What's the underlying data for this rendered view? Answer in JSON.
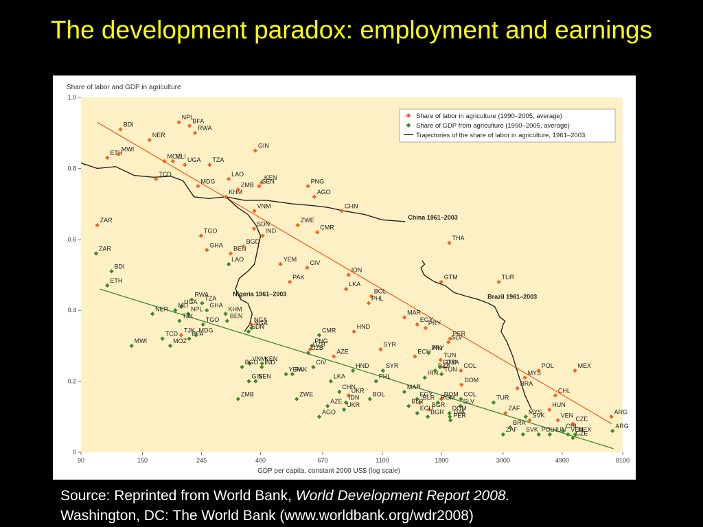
{
  "title": "The development paradox: employment and earnings",
  "source": {
    "prefix": "Source: Reprinted from World Bank, ",
    "italic": "World Development Report 2008.",
    "line2": "Washington, DC: The World Bank (www.worldbank.org/wdr2008)"
  },
  "colors": {
    "labor": "#f26522",
    "gdp": "#3f8a2e",
    "trajectory": "#222222",
    "plot_bg": "#fdf0c4",
    "title": "#ffff00"
  },
  "chart_data": {
    "type": "scatter",
    "title": "",
    "ylabel": "Share of labor and GDP in agriculture",
    "xlabel": "GDP per capita, constant 2000 US$ (log scale)",
    "x_scale": "log",
    "xlim": [
      90,
      8100
    ],
    "ylim": [
      0,
      1
    ],
    "xticks": [
      90,
      150,
      245,
      400,
      670,
      1100,
      1800,
      3000,
      4900,
      8100
    ],
    "yticks": [
      0,
      0.2,
      0.4,
      0.6,
      0.8,
      1.0
    ],
    "ytick_labels": [
      "0",
      "0.2",
      "0.4",
      "0.6",
      "0.8",
      "1.0"
    ],
    "legend_position": "top-right",
    "legend": [
      "Share of labor in agriculture (1990–2005, average)",
      "Share of GDP from agriculture (1990–2005, average)",
      "Trajectories of the share of labor in agriculture, 1961–2003"
    ],
    "series": [
      {
        "name": "Share of labor in agriculture (1990–2005, average)",
        "marker": "diamond",
        "points": [
          {
            "label": "BDI",
            "x": 125,
            "y": 0.91
          },
          {
            "label": "NPL",
            "x": 203,
            "y": 0.93
          },
          {
            "label": "BFA",
            "x": 222,
            "y": 0.92
          },
          {
            "label": "RWA",
            "x": 232,
            "y": 0.9
          },
          {
            "label": "NER",
            "x": 159,
            "y": 0.88
          },
          {
            "label": "ETH",
            "x": 112,
            "y": 0.83
          },
          {
            "label": "MWI",
            "x": 123,
            "y": 0.84
          },
          {
            "label": "MOZ",
            "x": 180,
            "y": 0.82
          },
          {
            "label": "MLI",
            "x": 193,
            "y": 0.82
          },
          {
            "label": "UGA",
            "x": 213,
            "y": 0.81
          },
          {
            "label": "TZA",
            "x": 262,
            "y": 0.81
          },
          {
            "label": "GIN",
            "x": 383,
            "y": 0.85
          },
          {
            "label": "TCD",
            "x": 168,
            "y": 0.77
          },
          {
            "label": "MDG",
            "x": 238,
            "y": 0.75
          },
          {
            "label": "LAO",
            "x": 307,
            "y": 0.77
          },
          {
            "label": "KHM",
            "x": 300,
            "y": 0.72
          },
          {
            "label": "ZMB",
            "x": 332,
            "y": 0.74
          },
          {
            "label": "KEN",
            "x": 403,
            "y": 0.76
          },
          {
            "label": "SEN",
            "x": 395,
            "y": 0.75
          },
          {
            "label": "PNG",
            "x": 593,
            "y": 0.75
          },
          {
            "label": "AGO",
            "x": 625,
            "y": 0.72
          },
          {
            "label": "VNM",
            "x": 380,
            "y": 0.68
          },
          {
            "label": "CHN",
            "x": 786,
            "y": 0.68
          },
          {
            "label": "ZAR",
            "x": 103,
            "y": 0.64
          },
          {
            "label": "SDN",
            "x": 379,
            "y": 0.63
          },
          {
            "label": "IND",
            "x": 407,
            "y": 0.61
          },
          {
            "label": "ZWE",
            "x": 545,
            "y": 0.64
          },
          {
            "label": "CMR",
            "x": 641,
            "y": 0.62
          },
          {
            "label": "TGO",
            "x": 244,
            "y": 0.61
          },
          {
            "label": "BEN",
            "x": 312,
            "y": 0.56
          },
          {
            "label": "BGD",
            "x": 347,
            "y": 0.58
          },
          {
            "label": "GHA",
            "x": 256,
            "y": 0.57
          },
          {
            "label": "THA",
            "x": 1919,
            "y": 0.59
          },
          {
            "label": "YEM",
            "x": 472,
            "y": 0.53
          },
          {
            "label": "CIV",
            "x": 589,
            "y": 0.52
          },
          {
            "label": "IDN",
            "x": 831,
            "y": 0.5
          },
          {
            "label": "PAK",
            "x": 510,
            "y": 0.48
          },
          {
            "label": "TUR",
            "x": 2896,
            "y": 0.48
          },
          {
            "label": "GTM",
            "x": 1795,
            "y": 0.48
          },
          {
            "label": "BOL",
            "x": 1003,
            "y": 0.44
          },
          {
            "label": "LKA",
            "x": 814,
            "y": 0.46
          },
          {
            "label": "PHL",
            "x": 982,
            "y": 0.42
          },
          {
            "label": "MAR",
            "x": 1322,
            "y": 0.38
          },
          {
            "label": "EGY",
            "x": 1470,
            "y": 0.36
          },
          {
            "label": "PRY",
            "x": 1575,
            "y": 0.35
          },
          {
            "label": "HND",
            "x": 869,
            "y": 0.34
          },
          {
            "label": "PER",
            "x": 1932,
            "y": 0.32
          },
          {
            "label": "SLV",
            "x": 1904,
            "y": 0.31
          },
          {
            "label": "SYR",
            "x": 1085,
            "y": 0.29
          },
          {
            "label": "UZB",
            "x": 604,
            "y": 0.29
          },
          {
            "label": "ECU",
            "x": 1442,
            "y": 0.27
          },
          {
            "label": "IRN",
            "x": 1614,
            "y": 0.28
          },
          {
            "label": "TUN",
            "x": 1786,
            "y": 0.26
          },
          {
            "label": "AZE",
            "x": 735,
            "y": 0.27
          },
          {
            "label": "DZA",
            "x": 1835,
            "y": 0.24
          },
          {
            "label": "COL",
            "x": 2113,
            "y": 0.23
          },
          {
            "label": "MYS",
            "x": 3595,
            "y": 0.21
          },
          {
            "label": "POL",
            "x": 4034,
            "y": 0.23
          },
          {
            "label": "MEX",
            "x": 5452,
            "y": 0.23
          },
          {
            "label": "DOM",
            "x": 2124,
            "y": 0.19
          },
          {
            "label": "BRA",
            "x": 3379,
            "y": 0.18
          },
          {
            "label": "CHL",
            "x": 4629,
            "y": 0.16
          },
          {
            "label": "HUN",
            "x": 4407,
            "y": 0.12
          },
          {
            "label": "VEN",
            "x": 4729,
            "y": 0.09
          },
          {
            "label": "CZE",
            "x": 5355,
            "y": 0.08
          },
          {
            "label": "ARG",
            "x": 7376,
            "y": 0.1
          },
          {
            "label": "ZAF",
            "x": 3060,
            "y": 0.11
          },
          {
            "label": "SVK",
            "x": 3740,
            "y": 0.09
          },
          {
            "label": "BLR",
            "x": 1504,
            "y": 0.14
          },
          {
            "label": "ROM",
            "x": 1795,
            "y": 0.15
          },
          {
            "label": "UKR",
            "x": 831,
            "y": 0.16
          },
          {
            "label": "BGR",
            "x": 1621,
            "y": 0.12
          },
          {
            "label": "NGA",
            "x": 370,
            "y": 0.36
          },
          {
            "label": "TJK",
            "x": 207,
            "y": 0.33
          }
        ]
      },
      {
        "name": "Share of GDP from agriculture (1990–2005, average)",
        "marker": "diamond",
        "points": [
          {
            "label": "ZAR",
            "x": 102,
            "y": 0.56
          },
          {
            "label": "BDI",
            "x": 116,
            "y": 0.51
          },
          {
            "label": "ETH",
            "x": 112,
            "y": 0.47
          },
          {
            "label": "LAO",
            "x": 307,
            "y": 0.53
          },
          {
            "label": "UGA",
            "x": 207,
            "y": 0.41
          },
          {
            "label": "RWA",
            "x": 226,
            "y": 0.43
          },
          {
            "label": "TZA",
            "x": 246,
            "y": 0.42
          },
          {
            "label": "MLI",
            "x": 197,
            "y": 0.4
          },
          {
            "label": "NPL",
            "x": 219,
            "y": 0.39
          },
          {
            "label": "GHA",
            "x": 256,
            "y": 0.4
          },
          {
            "label": "KHM",
            "x": 299,
            "y": 0.39
          },
          {
            "label": "NER",
            "x": 163,
            "y": 0.39
          },
          {
            "label": "TJK",
            "x": 204,
            "y": 0.37
          },
          {
            "label": "TGO",
            "x": 248,
            "y": 0.36
          },
          {
            "label": "BEN",
            "x": 303,
            "y": 0.37
          },
          {
            "label": "TCD",
            "x": 177,
            "y": 0.32
          },
          {
            "label": "MOZ",
            "x": 189,
            "y": 0.3
          },
          {
            "label": "BFA",
            "x": 221,
            "y": 0.32
          },
          {
            "label": "MDG",
            "x": 234,
            "y": 0.33
          },
          {
            "label": "MWI",
            "x": 137,
            "y": 0.3
          },
          {
            "label": "SDN",
            "x": 362,
            "y": 0.34
          },
          {
            "label": "NGA",
            "x": 371,
            "y": 0.35
          },
          {
            "label": "VNM",
            "x": 365,
            "y": 0.25
          },
          {
            "label": "BGD",
            "x": 343,
            "y": 0.24
          },
          {
            "label": "KEN",
            "x": 405,
            "y": 0.25
          },
          {
            "label": "GIN",
            "x": 363,
            "y": 0.2
          },
          {
            "label": "IND",
            "x": 404,
            "y": 0.24
          },
          {
            "label": "SEN",
            "x": 384,
            "y": 0.2
          },
          {
            "label": "YEM",
            "x": 494,
            "y": 0.22
          },
          {
            "label": "PAK",
            "x": 521,
            "y": 0.22
          },
          {
            "label": "ZMB",
            "x": 332,
            "y": 0.15
          },
          {
            "label": "CMR",
            "x": 651,
            "y": 0.33
          },
          {
            "label": "PNG",
            "x": 613,
            "y": 0.3
          },
          {
            "label": "UZB",
            "x": 594,
            "y": 0.28
          },
          {
            "label": "CIV",
            "x": 620,
            "y": 0.24
          },
          {
            "label": "HND",
            "x": 862,
            "y": 0.23
          },
          {
            "label": "LKA",
            "x": 717,
            "y": 0.2
          },
          {
            "label": "ZWE",
            "x": 540,
            "y": 0.15
          },
          {
            "label": "CHN",
            "x": 770,
            "y": 0.17
          },
          {
            "label": "UKR",
            "x": 800,
            "y": 0.12
          },
          {
            "label": "AZE",
            "x": 698,
            "y": 0.13
          },
          {
            "label": "IDN",
            "x": 813,
            "y": 0.14
          },
          {
            "label": "AGO",
            "x": 651,
            "y": 0.1
          },
          {
            "label": "BOL",
            "x": 992,
            "y": 0.15
          },
          {
            "label": "PHL",
            "x": 1044,
            "y": 0.2
          },
          {
            "label": "SYR",
            "x": 1106,
            "y": 0.23
          },
          {
            "label": "MAR",
            "x": 1320,
            "y": 0.17
          },
          {
            "label": "EGY",
            "x": 1468,
            "y": 0.15
          },
          {
            "label": "ECU",
            "x": 1470,
            "y": 0.11
          },
          {
            "label": "BLR",
            "x": 1369,
            "y": 0.13
          },
          {
            "label": "PRY",
            "x": 1615,
            "y": 0.28
          },
          {
            "label": "IRN",
            "x": 1565,
            "y": 0.21
          },
          {
            "label": "DZA",
            "x": 1706,
            "y": 0.23
          },
          {
            "label": "TUN",
            "x": 1799,
            "y": 0.22
          },
          {
            "label": "GTM",
            "x": 1776,
            "y": 0.24
          },
          {
            "label": "COL",
            "x": 2113,
            "y": 0.15
          },
          {
            "label": "ROM",
            "x": 1746,
            "y": 0.14
          },
          {
            "label": "BGR",
            "x": 1605,
            "y": 0.1
          },
          {
            "label": "PER",
            "x": 1938,
            "y": 0.09
          },
          {
            "label": "SLV",
            "x": 2104,
            "y": 0.13
          },
          {
            "label": "DOM",
            "x": 1921,
            "y": 0.11
          },
          {
            "label": "THA",
            "x": 1927,
            "y": 0.1
          },
          {
            "label": "TUR",
            "x": 2770,
            "y": 0.14
          },
          {
            "label": "ZAF",
            "x": 3000,
            "y": 0.05
          },
          {
            "label": "BRA",
            "x": 3181,
            "y": 0.07
          },
          {
            "label": "SVK",
            "x": 3540,
            "y": 0.05
          },
          {
            "label": "MYS",
            "x": 3621,
            "y": 0.1
          },
          {
            "label": "POL",
            "x": 4034,
            "y": 0.05
          },
          {
            "label": "HUN",
            "x": 4421,
            "y": 0.05
          },
          {
            "label": "CHL",
            "x": 4939,
            "y": 0.06
          },
          {
            "label": "VEN",
            "x": 5141,
            "y": 0.05
          },
          {
            "label": "CZE",
            "x": 5355,
            "y": 0.04
          },
          {
            "label": "MEX",
            "x": 5466,
            "y": 0.05
          },
          {
            "label": "ARG",
            "x": 7446,
            "y": 0.06
          }
        ]
      }
    ],
    "trajectories": [
      {
        "label": "China 1961–2003",
        "points": [
          [
            90,
            0.815
          ],
          [
            103,
            0.8
          ],
          [
            120,
            0.805
          ],
          [
            140,
            0.78
          ],
          [
            165,
            0.775
          ],
          [
            190,
            0.778
          ],
          [
            210,
            0.765
          ],
          [
            230,
            0.72
          ],
          [
            260,
            0.715
          ],
          [
            300,
            0.72
          ],
          [
            350,
            0.71
          ],
          [
            420,
            0.71
          ],
          [
            520,
            0.7
          ],
          [
            620,
            0.695
          ],
          [
            700,
            0.69
          ],
          [
            800,
            0.68
          ],
          [
            950,
            0.67
          ],
          [
            1100,
            0.655
          ],
          [
            1330,
            0.65
          ]
        ]
      },
      {
        "label": "Nigeria 1961–2003",
        "points": [
          [
            300,
            0.72
          ],
          [
            330,
            0.69
          ],
          [
            360,
            0.67
          ],
          [
            385,
            0.64
          ],
          [
            400,
            0.61
          ],
          [
            390,
            0.57
          ],
          [
            380,
            0.53
          ],
          [
            360,
            0.51
          ],
          [
            335,
            0.49
          ],
          [
            325,
            0.46
          ],
          [
            340,
            0.43
          ],
          [
            360,
            0.42
          ],
          [
            373,
            0.39
          ],
          [
            365,
            0.36
          ],
          [
            350,
            0.34
          ]
        ]
      },
      {
        "label": "Brazil 1961–2003",
        "points": [
          [
            1530,
            0.54
          ],
          [
            1565,
            0.53
          ],
          [
            1515,
            0.52
          ],
          [
            1555,
            0.5
          ],
          [
            1620,
            0.49
          ],
          [
            1700,
            0.48
          ],
          [
            1850,
            0.47
          ],
          [
            2000,
            0.45
          ],
          [
            2200,
            0.44
          ],
          [
            2450,
            0.43
          ],
          [
            2650,
            0.42
          ],
          [
            2800,
            0.41
          ],
          [
            2920,
            0.38
          ],
          [
            3050,
            0.37
          ],
          [
            3000,
            0.36
          ],
          [
            2950,
            0.34
          ],
          [
            3100,
            0.31
          ],
          [
            3250,
            0.27
          ],
          [
            3400,
            0.22
          ],
          [
            3500,
            0.19
          ],
          [
            3600,
            0.16
          ],
          [
            3800,
            0.12
          ]
        ]
      }
    ],
    "trend_lines": [
      {
        "series": "labor",
        "from": [
          103,
          0.93
        ],
        "to": [
          7400,
          0.08
        ]
      },
      {
        "series": "gdp",
        "from": [
          105,
          0.46
        ],
        "to": [
          7500,
          0.01
        ]
      }
    ]
  }
}
